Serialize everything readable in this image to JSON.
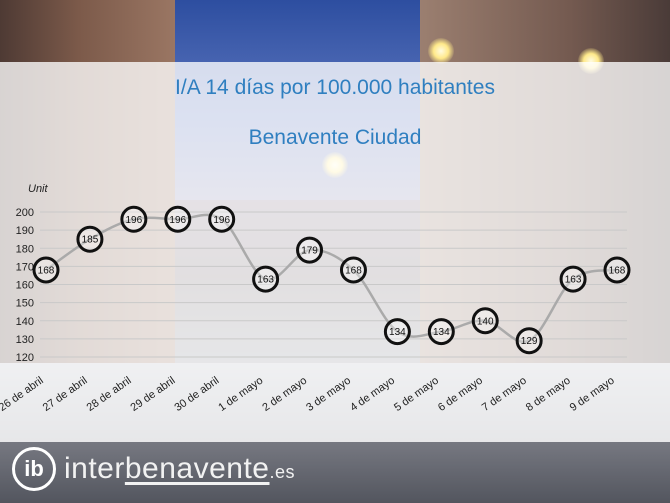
{
  "title": "I/A 14 días por 100.000 habitantes",
  "subtitle": "Benavente Ciudad",
  "brand": {
    "logo_mark": "ib",
    "name_part1": "inter",
    "name_part2": "benavente",
    "name_part3": ".es"
  },
  "colors": {
    "title": "#2f7fc0",
    "line": "#aaaaaa",
    "marker": "#111111",
    "panel": "#ffffff"
  },
  "chart_data": {
    "type": "line",
    "title": "I/A 14 días por 100.000 habitantes",
    "subtitle": "Benavente Ciudad",
    "ylabel": "Unit",
    "xlabel": "",
    "ylim": [
      120,
      200
    ],
    "yticks": [
      120,
      130,
      140,
      150,
      160,
      170,
      180,
      190,
      200
    ],
    "grid": true,
    "legend": "none",
    "categories": [
      "26 de abril",
      "27 de abril",
      "28 de abril",
      "29 de abril",
      "30 de abril",
      "1 de mayo",
      "2 de mayo",
      "3 de mayo",
      "4 de mayo",
      "5 de mayo",
      "6 de mayo",
      "7 de mayo",
      "8 de mayo",
      "9 de mayo"
    ],
    "series": [
      {
        "values": [
          168,
          185,
          196,
          196,
          196,
          163,
          179,
          168,
          134,
          134,
          140,
          129,
          163,
          168
        ],
        "labels": [
          "168",
          "185",
          "196",
          "196",
          "196",
          "163",
          "179",
          "168",
          "134",
          "134",
          "140",
          "129",
          "163",
          "168"
        ]
      }
    ]
  }
}
